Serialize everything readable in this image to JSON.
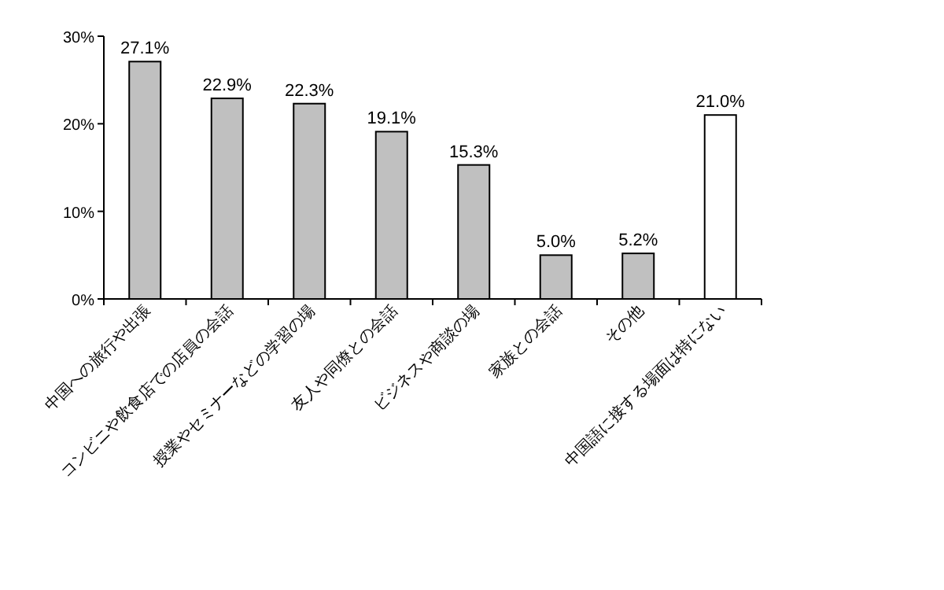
{
  "chart_data": {
    "type": "bar",
    "categories": [
      "中国への旅行や出張",
      "コンビニや飲食店での店員の会話",
      "授業やセミナーなどの学習の場",
      "友人や同僚との会話",
      "ビジネスや商談の場",
      "家族との会話",
      "その他",
      "中国語に接する場面は特にない"
    ],
    "values": [
      27.1,
      22.9,
      22.3,
      19.1,
      15.3,
      5.0,
      5.2,
      21.0
    ],
    "colors": [
      "#c0c0c0",
      "#c0c0c0",
      "#c0c0c0",
      "#c0c0c0",
      "#c0c0c0",
      "#c0c0c0",
      "#c0c0c0",
      "#ffffff"
    ],
    "value_labels": [
      "27.1%",
      "22.9%",
      "22.3%",
      "19.1%",
      "15.3%",
      "5.0%",
      "5.2%",
      "21.0%"
    ],
    "ylim": [
      0,
      30
    ],
    "yticks": [
      {
        "value": 0,
        "label": "0%"
      },
      {
        "value": 10,
        "label": "10%"
      },
      {
        "value": 20,
        "label": "20%"
      },
      {
        "value": 30,
        "label": "30%"
      }
    ],
    "grid": false
  }
}
